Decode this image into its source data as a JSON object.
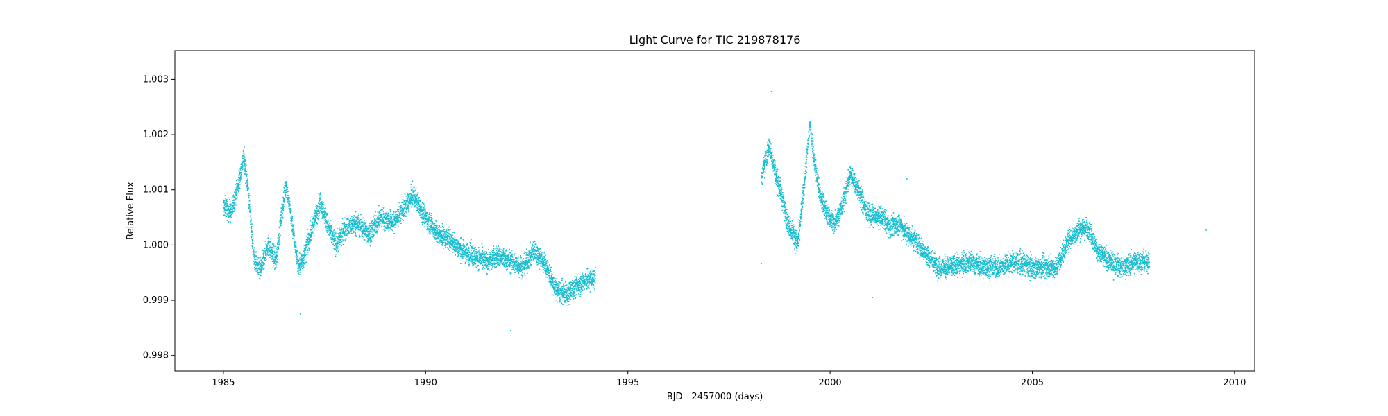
{
  "chart_data": {
    "type": "scatter",
    "title": "Light Curve for TIC 219878176",
    "xlabel": "BJD - 2457000 (days)",
    "ylabel": "Relative Flux",
    "xlim": [
      1983.8,
      2010.5
    ],
    "ylim": [
      0.99772,
      1.00352
    ],
    "xticks": [
      1985,
      1990,
      1995,
      2000,
      2005,
      2010
    ],
    "yticks": [
      0.998,
      0.999,
      1.0,
      1.001,
      1.002,
      1.003
    ],
    "xtick_labels": [
      "1985",
      "1990",
      "1995",
      "2000",
      "2005",
      "2010"
    ],
    "ytick_labels": [
      "0.998",
      "0.999",
      "1.000",
      "1.001",
      "1.002",
      "1.003"
    ],
    "point_color": "#17becf",
    "grid": false,
    "legend": "none",
    "series": [
      {
        "segments": [
          {
            "x_range": [
              1985.0,
              1994.2
            ],
            "trend": [
              [
                1985.0,
                1.0007
              ],
              [
                1985.2,
                1.0006
              ],
              [
                1985.4,
                1.0012
              ],
              [
                1985.5,
                1.0016
              ],
              [
                1985.6,
                1.0011
              ],
              [
                1985.75,
                0.9998
              ],
              [
                1985.9,
                0.9995
              ],
              [
                1986.1,
                1.0
              ],
              [
                1986.3,
                0.9997
              ],
              [
                1986.45,
                1.0006
              ],
              [
                1986.55,
                1.0011
              ],
              [
                1986.7,
                1.0004
              ],
              [
                1986.85,
                0.9996
              ],
              [
                1987.0,
                0.9998
              ],
              [
                1987.2,
                1.0003
              ],
              [
                1987.4,
                1.0008
              ],
              [
                1987.6,
                1.0003
              ],
              [
                1987.8,
                1.0
              ],
              [
                1988.0,
                1.0003
              ],
              [
                1988.3,
                1.0004
              ],
              [
                1988.6,
                1.0002
              ],
              [
                1988.9,
                1.0005
              ],
              [
                1989.2,
                1.0004
              ],
              [
                1989.5,
                1.0007
              ],
              [
                1989.7,
                1.0009
              ],
              [
                1990.0,
                1.0005
              ],
              [
                1990.3,
                1.0002
              ],
              [
                1990.6,
                1.0001
              ],
              [
                1990.9,
                0.9999
              ],
              [
                1991.2,
                0.9998
              ],
              [
                1991.5,
                0.9997
              ],
              [
                1991.8,
                0.9998
              ],
              [
                1992.1,
                0.9997
              ],
              [
                1992.4,
                0.9996
              ],
              [
                1992.7,
                0.9999
              ],
              [
                1993.0,
                0.9996
              ],
              [
                1993.2,
                0.9992
              ],
              [
                1993.5,
                0.9991
              ],
              [
                1993.8,
                0.9993
              ],
              [
                1994.2,
                0.9994
              ]
            ]
          },
          {
            "x_range": [
              1998.3,
              2007.9
            ],
            "trend": [
              [
                1998.3,
                1.0012
              ],
              [
                1998.5,
                1.0018
              ],
              [
                1998.65,
                1.0013
              ],
              [
                1998.8,
                1.0009
              ],
              [
                1998.95,
                1.0004
              ],
              [
                1999.1,
                1.0002
              ],
              [
                1999.2,
                1.0
              ],
              [
                1999.35,
                1.001
              ],
              [
                1999.5,
                1.0022
              ],
              [
                1999.6,
                1.0016
              ],
              [
                1999.75,
                1.0009
              ],
              [
                1999.9,
                1.0006
              ],
              [
                2000.1,
                1.0004
              ],
              [
                2000.3,
                1.0007
              ],
              [
                2000.5,
                1.0013
              ],
              [
                2000.7,
                1.001
              ],
              [
                2000.9,
                1.0006
              ],
              [
                2001.1,
                1.0005
              ],
              [
                2001.3,
                1.0005
              ],
              [
                2001.5,
                1.0003
              ],
              [
                2001.7,
                1.0004
              ],
              [
                2001.9,
                1.0002
              ],
              [
                2002.1,
                1.0001
              ],
              [
                2002.4,
                0.9998
              ],
              [
                2002.7,
                0.9996
              ],
              [
                2003.0,
                0.9996
              ],
              [
                2003.4,
                0.9997
              ],
              [
                2003.8,
                0.9996
              ],
              [
                2004.2,
                0.9996
              ],
              [
                2004.6,
                0.9997
              ],
              [
                2005.0,
                0.9996
              ],
              [
                2005.3,
                0.9996
              ],
              [
                2005.6,
                0.9996
              ],
              [
                2005.9,
                1.0001
              ],
              [
                2006.2,
                1.0003
              ],
              [
                2006.4,
                1.0003
              ],
              [
                2006.6,
                0.9999
              ],
              [
                2006.9,
                0.9997
              ],
              [
                2007.2,
                0.9996
              ],
              [
                2007.6,
                0.9997
              ],
              [
                2007.9,
                0.9997
              ]
            ]
          }
        ],
        "scatter_amplitude": 0.00017,
        "outliers": [
          [
            1986.9,
            0.99875
          ],
          [
            1992.1,
            0.99845
          ],
          [
            1998.55,
            1.00278
          ],
          [
            2001.05,
            0.99905
          ],
          [
            2001.9,
            1.0012
          ],
          [
            2009.3,
            1.00027
          ]
        ]
      }
    ]
  }
}
